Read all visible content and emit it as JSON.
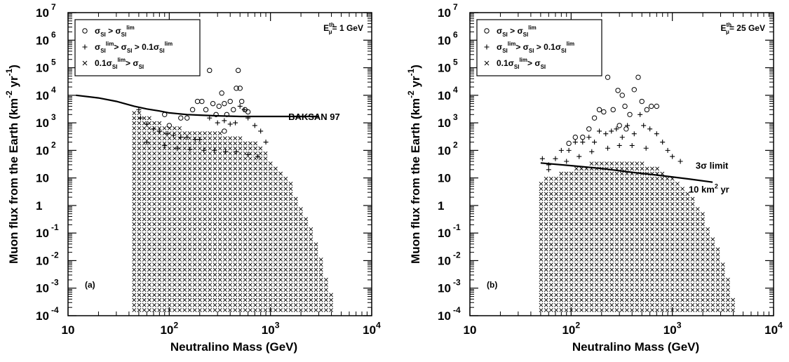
{
  "chart_data": [
    {
      "type": "scatter",
      "panel_label": "(a)",
      "threshold_label": "E",
      "threshold_sup": "th",
      "threshold_sub": "μ",
      "threshold_value": "= 1 GeV",
      "xlabel": "Neutralino Mass (GeV)",
      "ylabel": "Muon flux from the Earth (km",
      "ylabel_sup1": "-2",
      "ylabel_mid": " yr",
      "ylabel_sup2": "-1",
      "ylabel_end": ")",
      "xscale": "log",
      "yscale": "log",
      "xlim": [
        10,
        10000
      ],
      "ylim": [
        0.0001,
        10000000
      ],
      "x_ticks": [
        {
          "base": "10",
          "exp": ""
        },
        {
          "base": "10",
          "exp": "2"
        },
        {
          "base": "10",
          "exp": "3"
        },
        {
          "base": "10",
          "exp": "4"
        }
      ],
      "y_ticks": [
        {
          "base": "10",
          "exp": "-4"
        },
        {
          "base": "10",
          "exp": "-3"
        },
        {
          "base": "10",
          "exp": "-2"
        },
        {
          "base": "10",
          "exp": "-1"
        },
        {
          "base": "1",
          "exp": ""
        },
        {
          "base": "10",
          "exp": ""
        },
        {
          "base": "10",
          "exp": "2"
        },
        {
          "base": "10",
          "exp": "3"
        },
        {
          "base": "10",
          "exp": "4"
        },
        {
          "base": "10",
          "exp": "5"
        },
        {
          "base": "10",
          "exp": "6"
        },
        {
          "base": "10",
          "exp": "7"
        }
      ],
      "legend_position": "top-left",
      "legend": [
        {
          "marker": "circle",
          "label": "σSI > σSI lim"
        },
        {
          "marker": "plus",
          "label": "σSI lim > σSI > 0.1σSI lim"
        },
        {
          "marker": "cross",
          "label": "0.1σSI lim > σSI"
        }
      ],
      "limit_line": {
        "label": "BAKSAN 97",
        "x": [
          12,
          20,
          30,
          45,
          60,
          80,
          100,
          150,
          200,
          300,
          500,
          1000,
          2000,
          3000
        ],
        "y": [
          10000,
          8000,
          6000,
          4000,
          3200,
          2700,
          2300,
          2000,
          1900,
          1800,
          1700,
          1700,
          1700,
          1700
        ]
      },
      "cross_region": {
        "x_min": 45,
        "y_min": 0.0001,
        "upper_edge": {
          "x": [
            45,
            100,
            200,
            400,
            700,
            1000,
            1500,
            2000,
            3000,
            4500
          ],
          "y": [
            3000,
            800,
            500,
            400,
            200,
            50,
            10,
            1,
            0.03,
            0.0001
          ]
        }
      },
      "plus_points": [
        [
          50,
          3000
        ],
        [
          52,
          1500
        ],
        [
          60,
          900
        ],
        [
          70,
          600
        ],
        [
          80,
          500
        ],
        [
          95,
          400
        ],
        [
          110,
          350
        ],
        [
          130,
          300
        ],
        [
          150,
          300
        ],
        [
          180,
          250
        ],
        [
          200,
          250
        ],
        [
          250,
          1500
        ],
        [
          300,
          1000
        ],
        [
          350,
          1200
        ],
        [
          400,
          900
        ],
        [
          450,
          1000
        ],
        [
          500,
          4000
        ],
        [
          550,
          3000
        ],
        [
          600,
          1500
        ],
        [
          700,
          800
        ],
        [
          800,
          500
        ],
        [
          900,
          200
        ],
        [
          60,
          200
        ],
        [
          90,
          150
        ],
        [
          120,
          120
        ],
        [
          160,
          110
        ],
        [
          220,
          100
        ],
        [
          280,
          100
        ],
        [
          360,
          90
        ],
        [
          460,
          90
        ],
        [
          600,
          70
        ],
        [
          750,
          60
        ]
      ],
      "circle_points": [
        [
          90,
          2000
        ],
        [
          100,
          800
        ],
        [
          130,
          1500
        ],
        [
          150,
          1500
        ],
        [
          170,
          3000
        ],
        [
          190,
          6000
        ],
        [
          210,
          6000
        ],
        [
          230,
          3000
        ],
        [
          250,
          80000
        ],
        [
          270,
          5000
        ],
        [
          290,
          2000
        ],
        [
          310,
          4000
        ],
        [
          330,
          12000
        ],
        [
          350,
          5000
        ],
        [
          370,
          2000
        ],
        [
          400,
          6000
        ],
        [
          430,
          3000
        ],
        [
          460,
          18000
        ],
        [
          480,
          80000
        ],
        [
          500,
          18000
        ],
        [
          520,
          6000
        ],
        [
          560,
          3000
        ],
        [
          600,
          2500
        ],
        [
          350,
          500
        ]
      ]
    },
    {
      "type": "scatter",
      "panel_label": "(b)",
      "threshold_label": "E",
      "threshold_sup": "th",
      "threshold_sub": "μ",
      "threshold_value": "= 25 GeV",
      "xlabel": "Neutralino Mass (GeV)",
      "ylabel": "Muon flux from the Earth (km",
      "ylabel_sup1": "-2",
      "ylabel_mid": " yr",
      "ylabel_sup2": "-1",
      "ylabel_end": ")",
      "xscale": "log",
      "yscale": "log",
      "xlim": [
        10,
        10000
      ],
      "ylim": [
        0.0001,
        10000000
      ],
      "x_ticks": [
        {
          "base": "10",
          "exp": ""
        },
        {
          "base": "10",
          "exp": "2"
        },
        {
          "base": "10",
          "exp": "3"
        },
        {
          "base": "10",
          "exp": "4"
        }
      ],
      "y_ticks": [
        {
          "base": "10",
          "exp": "-4"
        },
        {
          "base": "10",
          "exp": "-3"
        },
        {
          "base": "10",
          "exp": "-2"
        },
        {
          "base": "10",
          "exp": "-1"
        },
        {
          "base": "1",
          "exp": ""
        },
        {
          "base": "10",
          "exp": ""
        },
        {
          "base": "10",
          "exp": "2"
        },
        {
          "base": "10",
          "exp": "3"
        },
        {
          "base": "10",
          "exp": "4"
        },
        {
          "base": "10",
          "exp": "5"
        },
        {
          "base": "10",
          "exp": "6"
        },
        {
          "base": "10",
          "exp": "7"
        }
      ],
      "legend_position": "top-left",
      "legend": [
        {
          "marker": "circle",
          "label": "σSI > σSI lim"
        },
        {
          "marker": "plus",
          "label": "σSI lim > σSI > 0.1σSI lim"
        },
        {
          "marker": "cross",
          "label": "0.1σSI lim > σSI"
        }
      ],
      "limit_line": {
        "label": "3σ limit",
        "label2": "10 km",
        "label2_sup": "2",
        "label2_end": " yr",
        "x": [
          50,
          100,
          200,
          400,
          800,
          1500,
          2500
        ],
        "y": [
          35,
          28,
          22,
          16,
          12,
          9,
          7
        ]
      },
      "cross_region": {
        "x_min": 45,
        "y_min": 0.0001,
        "upper_edge": {
          "x": [
            45,
            100,
            200,
            400,
            700,
            1000,
            1500,
            2000,
            3000,
            4500
          ],
          "y": [
            8,
            20,
            50,
            50,
            25,
            10,
            3,
            0.5,
            0.02,
            0.0001
          ]
        }
      },
      "plus_points": [
        [
          52,
          50
        ],
        [
          60,
          30
        ],
        [
          70,
          50
        ],
        [
          80,
          100
        ],
        [
          95,
          100
        ],
        [
          110,
          200
        ],
        [
          130,
          200
        ],
        [
          150,
          300
        ],
        [
          170,
          200
        ],
        [
          190,
          500
        ],
        [
          220,
          400
        ],
        [
          250,
          500
        ],
        [
          280,
          600
        ],
        [
          320,
          300
        ],
        [
          360,
          800
        ],
        [
          420,
          400
        ],
        [
          480,
          2000
        ],
        [
          520,
          800
        ],
        [
          600,
          600
        ],
        [
          700,
          400
        ],
        [
          800,
          200
        ],
        [
          900,
          100
        ],
        [
          1000,
          60
        ],
        [
          1200,
          40
        ],
        [
          60,
          20
        ],
        [
          90,
          40
        ],
        [
          120,
          60
        ],
        [
          160,
          90
        ],
        [
          230,
          120
        ],
        [
          300,
          150
        ],
        [
          400,
          150
        ],
        [
          550,
          120
        ]
      ],
      "circle_points": [
        [
          95,
          180
        ],
        [
          110,
          300
        ],
        [
          130,
          300
        ],
        [
          150,
          600
        ],
        [
          170,
          1500
        ],
        [
          190,
          3000
        ],
        [
          210,
          2500
        ],
        [
          230,
          45000
        ],
        [
          260,
          3000
        ],
        [
          290,
          15000
        ],
        [
          320,
          10000
        ],
        [
          340,
          4000
        ],
        [
          380,
          2000
        ],
        [
          420,
          16000
        ],
        [
          460,
          45000
        ],
        [
          500,
          6000
        ],
        [
          560,
          3000
        ],
        [
          620,
          4000
        ],
        [
          700,
          4000
        ],
        [
          300,
          800
        ],
        [
          350,
          600
        ]
      ]
    }
  ]
}
